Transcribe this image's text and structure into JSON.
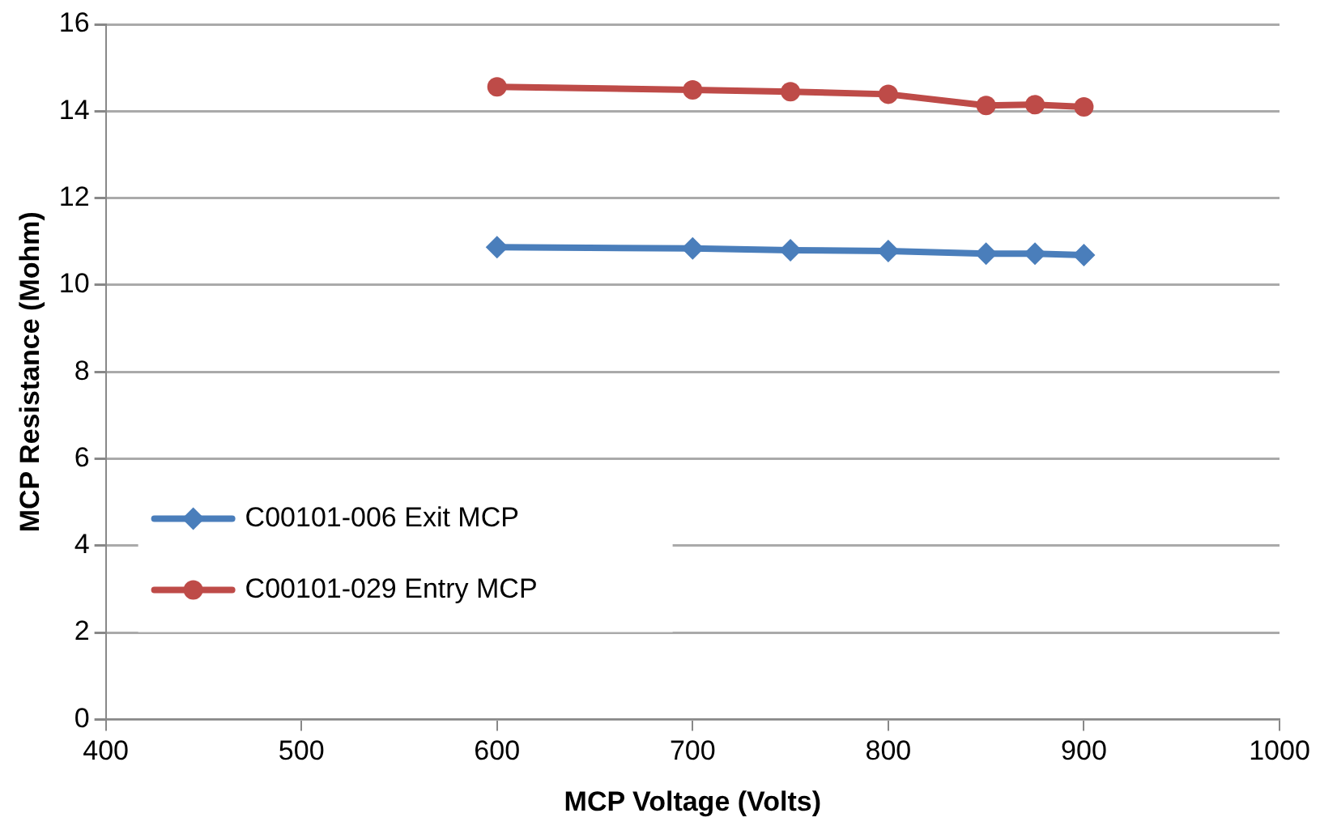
{
  "chart_data": {
    "type": "line",
    "xlabel": "MCP Voltage (Volts)",
    "ylabel": "MCP Resistance (Mohm)",
    "xlim": [
      400,
      1000
    ],
    "xticks": [
      400,
      500,
      600,
      700,
      800,
      900,
      1000
    ],
    "ylim": [
      0,
      16
    ],
    "yticks": [
      0,
      2,
      4,
      6,
      8,
      10,
      12,
      14,
      16
    ],
    "grid": "y",
    "legend": "bottom left",
    "line_style": "solid",
    "series": [
      {
        "name": "C00101-006 Exit MCP",
        "color": "#4a7ebb",
        "marker": "diamond",
        "x": [
          600,
          700,
          750,
          800,
          850,
          875,
          900
        ],
        "values": [
          10.87,
          10.84,
          10.8,
          10.78,
          10.72,
          10.72,
          10.69
        ]
      },
      {
        "name": "C00101-029 Entry MCP",
        "color": "#be4b48",
        "marker": "circle",
        "x": [
          600,
          700,
          750,
          800,
          850,
          875,
          900
        ],
        "values": [
          14.56,
          14.49,
          14.45,
          14.39,
          14.13,
          14.15,
          14.1
        ]
      }
    ]
  }
}
